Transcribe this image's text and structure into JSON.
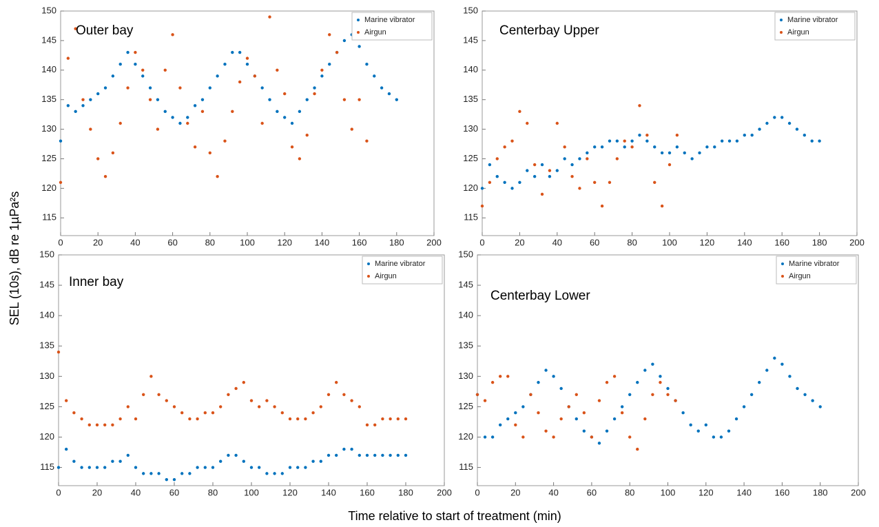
{
  "xlabel": "Time relative to start of treatment (min)",
  "ylabel": "SEL (10s), dB re 1µPa²s",
  "chart_data": [
    {
      "type": "scatter",
      "title": "Outer bay",
      "xlim": [
        0,
        200
      ],
      "xticks": [
        0,
        20,
        40,
        60,
        80,
        100,
        120,
        140,
        160,
        180,
        200
      ],
      "ylim": [
        112,
        150
      ],
      "yticks": [
        115,
        120,
        125,
        130,
        135,
        140,
        145,
        150
      ],
      "series": [
        {
          "name": "Marine vibrator",
          "color": "#0072bd",
          "x": [
            0,
            4,
            8,
            12,
            16,
            20,
            24,
            28,
            32,
            36,
            40,
            44,
            48,
            52,
            56,
            60,
            64,
            68,
            72,
            76,
            80,
            84,
            88,
            92,
            96,
            100,
            104,
            108,
            112,
            116,
            120,
            124,
            128,
            132,
            136,
            140,
            144,
            148,
            152,
            156,
            160,
            164,
            168,
            172,
            176,
            180
          ],
          "values": [
            128,
            134,
            133,
            134,
            135,
            136,
            137,
            139,
            141,
            143,
            141,
            139,
            137,
            135,
            133,
            132,
            131,
            132,
            134,
            135,
            137,
            139,
            141,
            143,
            143,
            141,
            139,
            137,
            135,
            133,
            132,
            131,
            133,
            135,
            137,
            139,
            141,
            143,
            145,
            146,
            144,
            141,
            139,
            137,
            136,
            135
          ]
        },
        {
          "name": "Airgun",
          "color": "#d95319",
          "x": [
            0,
            4,
            8,
            12,
            16,
            20,
            24,
            28,
            32,
            36,
            40,
            44,
            48,
            52,
            56,
            60,
            64,
            68,
            72,
            76,
            80,
            84,
            88,
            92,
            96,
            100,
            104,
            108,
            112,
            116,
            120,
            124,
            128,
            132,
            136,
            140,
            144,
            148,
            152,
            156,
            160,
            164
          ],
          "values": [
            121,
            142,
            147,
            135,
            130,
            125,
            122,
            126,
            131,
            137,
            143,
            140,
            135,
            130,
            140,
            146,
            137,
            131,
            127,
            133,
            126,
            122,
            128,
            133,
            138,
            142,
            139,
            131,
            149,
            140,
            136,
            127,
            125,
            129,
            136,
            140,
            146,
            143,
            135,
            130,
            135,
            128
          ]
        }
      ]
    },
    {
      "type": "scatter",
      "title": "Centerbay Upper",
      "xlim": [
        0,
        200
      ],
      "xticks": [
        0,
        20,
        40,
        60,
        80,
        100,
        120,
        140,
        160,
        180,
        200
      ],
      "ylim": [
        112,
        150
      ],
      "yticks": [
        115,
        120,
        125,
        130,
        135,
        140,
        145,
        150
      ],
      "series": [
        {
          "name": "Marine vibrator",
          "color": "#0072bd",
          "x": [
            0,
            4,
            8,
            12,
            16,
            20,
            24,
            28,
            32,
            36,
            40,
            44,
            48,
            52,
            56,
            60,
            64,
            68,
            72,
            76,
            80,
            84,
            88,
            92,
            96,
            100,
            104,
            108,
            112,
            116,
            120,
            124,
            128,
            132,
            136,
            140,
            144,
            148,
            152,
            156,
            160,
            164,
            168,
            172,
            176,
            180
          ],
          "values": [
            120,
            124,
            122,
            121,
            120,
            121,
            123,
            122,
            124,
            122,
            123,
            125,
            124,
            125,
            126,
            127,
            127,
            128,
            128,
            127,
            128,
            129,
            128,
            127,
            126,
            126,
            127,
            126,
            125,
            126,
            127,
            127,
            128,
            128,
            128,
            129,
            129,
            130,
            131,
            132,
            132,
            131,
            130,
            129,
            128,
            128
          ]
        },
        {
          "name": "Airgun",
          "color": "#d95319",
          "x": [
            0,
            4,
            8,
            12,
            16,
            20,
            24,
            28,
            32,
            36,
            40,
            44,
            48,
            52,
            56,
            60,
            64,
            68,
            72,
            76,
            80,
            84,
            88,
            92,
            96,
            100,
            104
          ],
          "values": [
            117,
            121,
            125,
            127,
            128,
            133,
            131,
            124,
            119,
            123,
            131,
            127,
            122,
            120,
            125,
            121,
            117,
            121,
            125,
            128,
            127,
            134,
            129,
            121,
            117,
            124,
            129
          ]
        }
      ]
    },
    {
      "type": "scatter",
      "title": "Inner bay",
      "xlim": [
        0,
        200
      ],
      "xticks": [
        0,
        20,
        40,
        60,
        80,
        100,
        120,
        140,
        160,
        180,
        200
      ],
      "ylim": [
        112,
        150
      ],
      "yticks": [
        115,
        120,
        125,
        130,
        135,
        140,
        145,
        150
      ],
      "series": [
        {
          "name": "Marine vibrator",
          "color": "#0072bd",
          "x": [
            0,
            4,
            8,
            12,
            16,
            20,
            24,
            28,
            32,
            36,
            40,
            44,
            48,
            52,
            56,
            60,
            64,
            68,
            72,
            76,
            80,
            84,
            88,
            92,
            96,
            100,
            104,
            108,
            112,
            116,
            120,
            124,
            128,
            132,
            136,
            140,
            144,
            148,
            152,
            156,
            160,
            164,
            168,
            172,
            176,
            180
          ],
          "values": [
            115,
            118,
            116,
            115,
            115,
            115,
            115,
            116,
            116,
            117,
            115,
            114,
            114,
            114,
            113,
            113,
            114,
            114,
            115,
            115,
            115,
            116,
            117,
            117,
            116,
            115,
            115,
            114,
            114,
            114,
            115,
            115,
            115,
            116,
            116,
            117,
            117,
            118,
            118,
            117,
            117,
            117,
            117,
            117,
            117,
            117
          ]
        },
        {
          "name": "Airgun",
          "color": "#d95319",
          "x": [
            0,
            4,
            8,
            12,
            16,
            20,
            24,
            28,
            32,
            36,
            40,
            44,
            48,
            52,
            56,
            60,
            64,
            68,
            72,
            76,
            80,
            84,
            88,
            92,
            96,
            100,
            104,
            108,
            112,
            116,
            120,
            124,
            128,
            132,
            136,
            140,
            144,
            148,
            152,
            156,
            160,
            164,
            168,
            172,
            176,
            180
          ],
          "values": [
            134,
            126,
            124,
            123,
            122,
            122,
            122,
            122,
            123,
            125,
            123,
            127,
            130,
            127,
            126,
            125,
            124,
            123,
            123,
            124,
            124,
            125,
            127,
            128,
            129,
            126,
            125,
            126,
            125,
            124,
            123,
            123,
            123,
            124,
            125,
            127,
            129,
            127,
            126,
            125,
            122,
            122,
            123,
            123,
            123,
            123
          ]
        }
      ]
    },
    {
      "type": "scatter",
      "title": "Centerbay Lower",
      "xlim": [
        0,
        200
      ],
      "xticks": [
        0,
        20,
        40,
        60,
        80,
        100,
        120,
        140,
        160,
        180,
        200
      ],
      "ylim": [
        112,
        150
      ],
      "yticks": [
        115,
        120,
        125,
        130,
        135,
        140,
        145,
        150
      ],
      "series": [
        {
          "name": "Marine vibrator",
          "color": "#0072bd",
          "x": [
            0,
            4,
            8,
            12,
            16,
            20,
            24,
            28,
            32,
            36,
            40,
            44,
            48,
            52,
            56,
            60,
            64,
            68,
            72,
            76,
            80,
            84,
            88,
            92,
            96,
            100,
            104,
            108,
            112,
            116,
            120,
            124,
            128,
            132,
            136,
            140,
            144,
            148,
            152,
            156,
            160,
            164,
            168,
            172,
            176,
            180
          ],
          "values": [
            127,
            120,
            120,
            122,
            123,
            124,
            125,
            127,
            129,
            131,
            130,
            128,
            125,
            123,
            121,
            120,
            119,
            121,
            123,
            125,
            127,
            129,
            131,
            132,
            130,
            128,
            126,
            124,
            122,
            121,
            122,
            120,
            120,
            121,
            123,
            125,
            127,
            129,
            131,
            133,
            132,
            130,
            128,
            127,
            126,
            125
          ]
        },
        {
          "name": "Airgun",
          "color": "#d95319",
          "x": [
            0,
            4,
            8,
            12,
            16,
            20,
            24,
            28,
            32,
            36,
            40,
            44,
            48,
            52,
            56,
            60,
            64,
            68,
            72,
            76,
            80,
            84,
            88,
            92,
            96,
            100,
            104
          ],
          "values": [
            127,
            126,
            129,
            130,
            130,
            122,
            120,
            127,
            124,
            121,
            120,
            123,
            125,
            127,
            124,
            120,
            126,
            129,
            130,
            124,
            120,
            118,
            123,
            127,
            129,
            127,
            126
          ]
        }
      ]
    }
  ]
}
